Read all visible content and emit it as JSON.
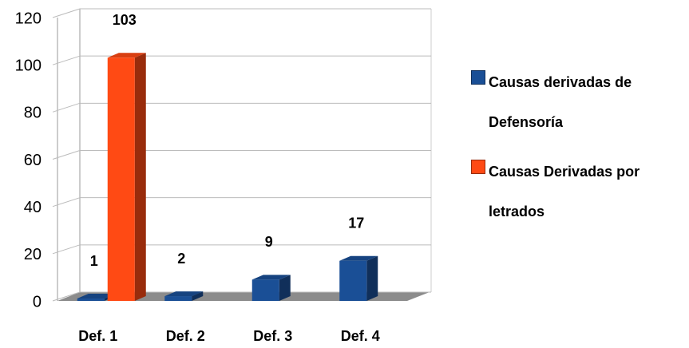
{
  "chart_data": {
    "type": "bar3d",
    "categories": [
      "Def. 1",
      "Def. 2",
      "Def. 3",
      "Def. 4"
    ],
    "series": [
      {
        "name": "Causas derivadas de Defensoría",
        "color": "#1a4f96",
        "values": [
          1,
          2,
          9,
          17
        ]
      },
      {
        "name": "Causas Derivadas por letrados",
        "color": "#ff4a14",
        "values": [
          103,
          null,
          null,
          null
        ]
      }
    ],
    "ylim": [
      0,
      120
    ],
    "yticks": [
      0,
      20,
      40,
      60,
      80,
      100,
      120
    ],
    "grid": true,
    "legend": "right"
  }
}
